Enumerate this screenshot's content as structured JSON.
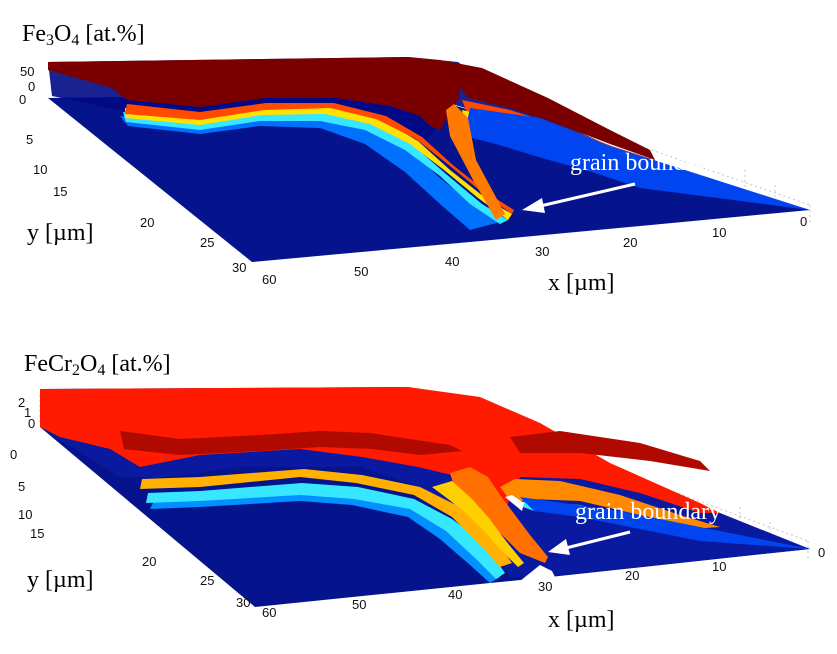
{
  "chart_data": [
    {
      "type": "surface3d",
      "title": "Fe3O4 [at.%]",
      "title_parts": {
        "base1": "Fe",
        "sub1": "3",
        "base2": "O",
        "sub2": "4",
        "suffix": " [at.%]"
      },
      "xlabel": "x [µm]",
      "ylabel": "y [µm]",
      "x_ticks": [
        "60",
        "50",
        "40",
        "30",
        "20",
        "10",
        "0"
      ],
      "y_ticks": [
        "0",
        "5",
        "10",
        "15",
        "20",
        "25",
        "30"
      ],
      "z_ticks": [
        "50",
        "0"
      ],
      "xlim": [
        0,
        64
      ],
      "ylim": [
        0,
        30
      ],
      "zlim": [
        0,
        55
      ],
      "colormap": "jet",
      "annotation": "grain boundary",
      "colors": [
        "#7a0000",
        "#ff3300",
        "#ffd000",
        "#30e8ff",
        "#0050ff",
        "#000a85"
      ],
      "surface_profile": {
        "grain_boundary_x": 30,
        "levels": [
          {
            "y": 0,
            "value": 55
          },
          {
            "y": 5,
            "value": 55
          },
          {
            "y": 9,
            "value": 45
          },
          {
            "y": 12,
            "value": 5
          },
          {
            "y": 30,
            "value": 0
          }
        ]
      }
    },
    {
      "type": "surface3d",
      "title": "FeCr2O4 [at.%]",
      "title_parts": {
        "base1": "FeCr",
        "sub1": "2",
        "base2": "O",
        "sub2": "4",
        "suffix": " [at.%]"
      },
      "xlabel": "x [µm]",
      "ylabel": "y [µm]",
      "x_ticks": [
        "60",
        "50",
        "40",
        "30",
        "20",
        "10",
        "0"
      ],
      "y_ticks": [
        "0",
        "5",
        "10",
        "15",
        "20",
        "25",
        "30"
      ],
      "z_ticks": [
        "2",
        "1",
        "0"
      ],
      "xlim": [
        0,
        64
      ],
      "ylim": [
        0,
        30
      ],
      "zlim": [
        0,
        2.2
      ],
      "colormap": "jet",
      "annotation": "grain boundary",
      "colors": [
        "#ff1a00",
        "#ff6a00",
        "#ffd000",
        "#30e8ff",
        "#0050ff",
        "#000a85"
      ],
      "surface_profile": {
        "grain_boundary_x": 30,
        "levels": [
          {
            "y": 0,
            "value": 2.0
          },
          {
            "y": 6,
            "value": 2.0
          },
          {
            "y": 9,
            "value": 1.6
          },
          {
            "y": 13,
            "value": 0.9
          },
          {
            "y": 16,
            "value": 0.05
          },
          {
            "y": 30,
            "value": 0
          }
        ]
      }
    }
  ]
}
